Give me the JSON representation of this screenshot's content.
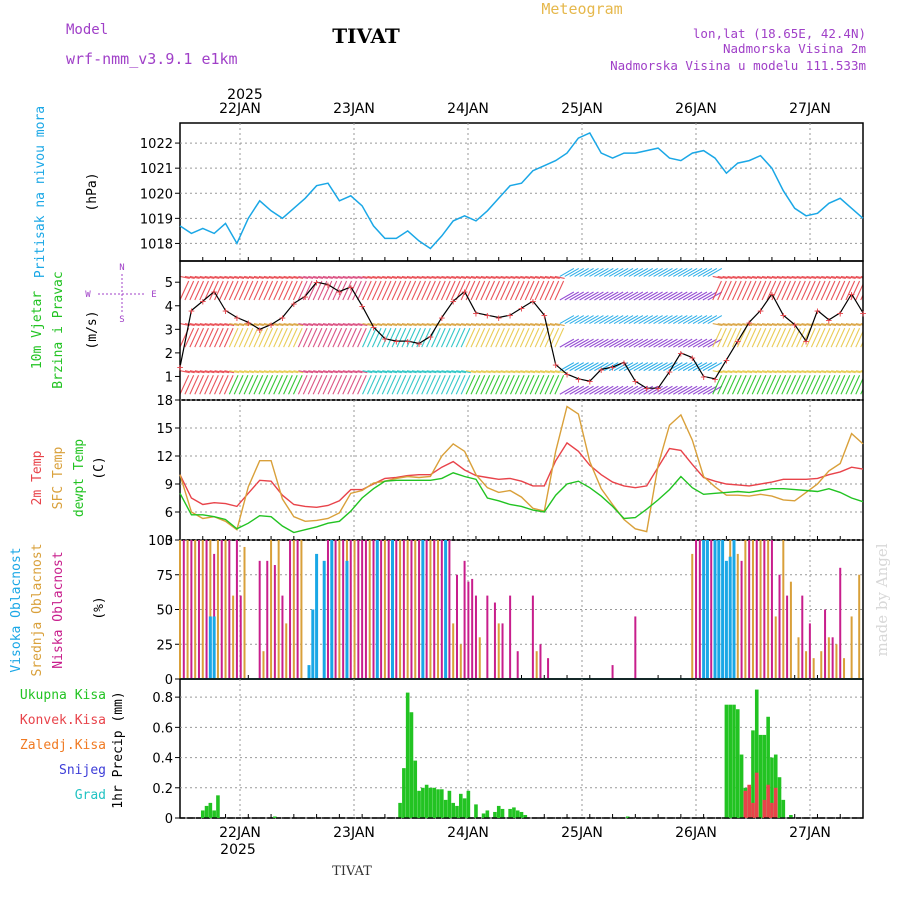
{
  "header": {
    "model_label": "Model",
    "model_name": "wrf-nmm_v3.9.1 e1km",
    "station": "TIVAT",
    "title": "Meteogram",
    "coords": "lon,lat (18.65E, 42.4N)",
    "elevation": "Nadmorska Visina 2m",
    "model_elevation": "Nadmorska Visina u modelu 111.533m",
    "footer_station": "TIVAT",
    "watermark": "made by Angel"
  },
  "colors": {
    "pressure": "#1aa7e6",
    "temp2m": "#e8434a",
    "sfc_temp": "#d9a03a",
    "dewpoint": "#22c322",
    "high_cloud": "#1aa7e6",
    "mid_cloud": "#d9a03a",
    "low_cloud": "#c81e8c",
    "total_precip": "#22c322",
    "conv_precip": "#e8434a",
    "frozen_precip": "#f07a22",
    "snow": "#3c3cd8",
    "hail": "#22c3c3",
    "title_orange": "#e6b84c",
    "purple": "#a040c8"
  },
  "time_axis": {
    "year": "2025",
    "days": [
      "22JAN",
      "23JAN",
      "24JAN",
      "25JAN",
      "26JAN",
      "27JAN"
    ],
    "hours_per_day": 24
  },
  "chart_data": [
    {
      "type": "line",
      "ylabel": "Pritisak na nivou mora",
      "unit": "(hPa)",
      "yticks": [
        1018,
        1019,
        1020,
        1021,
        1022
      ],
      "ylim": [
        1017.3,
        1022.8
      ],
      "grid": true,
      "series": [
        {
          "name": "Pritisak na nivou mora",
          "color_key": "pressure",
          "x": [
            0,
            3,
            6,
            9,
            12,
            15,
            18,
            21,
            24,
            27,
            30,
            33,
            36,
            39,
            42,
            45,
            48,
            51,
            54,
            57,
            60,
            63,
            66,
            69,
            72,
            75,
            78,
            81,
            84,
            87,
            90,
            93,
            96,
            99,
            102,
            105,
            108,
            111,
            114,
            117,
            120,
            123,
            126,
            129,
            132,
            135,
            138,
            141,
            144,
            147,
            150,
            153,
            156,
            159,
            162,
            165,
            168,
            171,
            174,
            177,
            180
          ],
          "values": [
            1018.7,
            1018.4,
            1018.6,
            1018.4,
            1018.8,
            1018.0,
            1019.0,
            1019.7,
            1019.3,
            1019.0,
            1019.4,
            1019.8,
            1020.3,
            1020.4,
            1019.7,
            1019.9,
            1019.5,
            1018.7,
            1018.2,
            1018.2,
            1018.5,
            1018.1,
            1017.8,
            1018.3,
            1018.9,
            1019.1,
            1018.9,
            1019.3,
            1019.8,
            1020.3,
            1020.4,
            1020.9,
            1021.1,
            1021.3,
            1021.6,
            1022.2,
            1022.4,
            1021.6,
            1021.4,
            1021.6,
            1021.6,
            1021.7,
            1021.8,
            1021.4,
            1021.3,
            1021.6,
            1021.7,
            1021.4,
            1020.8,
            1021.2,
            1021.3,
            1021.5,
            1021.0,
            1020.1,
            1019.4,
            1019.1,
            1019.2,
            1019.6,
            1019.8,
            1019.4,
            1019.0
          ]
        }
      ]
    },
    {
      "type": "wind",
      "ylabel": "10m Vjetar",
      "ylabel2": "Brzina i Pravac",
      "unit": "(m/s)",
      "compass": {
        "n": "N",
        "s": "S",
        "e": "E",
        "w": "W"
      },
      "yticks": [
        1,
        2,
        3,
        4,
        5
      ],
      "ylim": [
        0,
        5.9
      ],
      "band_colors": [
        "#22c322",
        "#e8c848",
        "#e8c848",
        "#d9a03a",
        "#e8434a"
      ],
      "series": [
        {
          "name": "speed",
          "x": [
            0,
            3,
            6,
            9,
            12,
            15,
            18,
            21,
            24,
            27,
            30,
            33,
            36,
            39,
            42,
            45,
            48,
            51,
            54,
            57,
            60,
            63,
            66,
            69,
            72,
            75,
            78,
            81,
            84,
            87,
            90,
            93,
            96,
            99,
            102,
            105,
            108,
            111,
            114,
            117,
            120,
            123,
            126,
            129,
            132,
            135,
            138,
            141,
            144,
            147,
            150,
            153,
            156,
            159,
            162,
            165,
            168,
            171,
            174,
            177,
            180
          ],
          "values": [
            1.4,
            3.8,
            4.2,
            4.6,
            3.8,
            3.5,
            3.3,
            3.0,
            3.2,
            3.5,
            4.1,
            4.4,
            5.0,
            4.9,
            4.6,
            4.8,
            4.0,
            3.1,
            2.6,
            2.5,
            2.5,
            2.4,
            2.7,
            3.5,
            4.2,
            4.6,
            3.7,
            3.6,
            3.5,
            3.6,
            3.9,
            4.2,
            3.6,
            1.5,
            1.1,
            0.9,
            0.8,
            1.3,
            1.4,
            1.6,
            0.8,
            0.5,
            0.5,
            1.2,
            2.0,
            1.8,
            1.0,
            0.9,
            1.7,
            2.5,
            3.3,
            3.8,
            4.5,
            3.6,
            3.2,
            2.5,
            3.8,
            3.4,
            3.7,
            4.5,
            3.7
          ]
        }
      ]
    },
    {
      "type": "line",
      "ylabel": "2m Temp",
      "ylabel2": "SFC Temp",
      "ylabel3": "dewpt Temp",
      "unit": "(C)",
      "yticks": [
        3,
        6,
        9,
        12,
        15,
        18
      ],
      "ylim": [
        3,
        18
      ],
      "grid": true,
      "x": [
        0,
        3,
        6,
        9,
        12,
        15,
        18,
        21,
        24,
        27,
        30,
        33,
        36,
        39,
        42,
        45,
        48,
        51,
        54,
        57,
        60,
        63,
        66,
        69,
        72,
        75,
        78,
        81,
        84,
        87,
        90,
        93,
        96,
        99,
        102,
        105,
        108,
        111,
        114,
        117,
        120,
        123,
        126,
        129,
        132,
        135,
        138,
        141,
        144,
        147,
        150,
        153,
        156,
        159,
        162,
        165,
        168,
        171,
        174,
        177,
        180
      ],
      "series": [
        {
          "name": "2m Temp",
          "color_key": "temp2m",
          "values": [
            10.0,
            7.5,
            6.8,
            7.0,
            6.9,
            6.6,
            8.0,
            9.4,
            9.3,
            7.8,
            6.8,
            6.6,
            6.5,
            6.7,
            7.2,
            8.4,
            8.4,
            9.0,
            9.6,
            9.7,
            9.9,
            10.0,
            10.0,
            10.8,
            11.4,
            10.5,
            9.9,
            9.7,
            9.5,
            9.6,
            9.3,
            8.8,
            8.8,
            11.5,
            13.4,
            12.5,
            11.0,
            10.0,
            9.2,
            8.8,
            8.6,
            8.8,
            10.8,
            12.8,
            12.6,
            11.1,
            9.7,
            9.3,
            9.0,
            8.9,
            8.8,
            9.0,
            9.2,
            9.5,
            9.5,
            9.5,
            9.6,
            10.0,
            10.3,
            10.8,
            10.6
          ]
        },
        {
          "name": "SFC Temp",
          "color_key": "sfc_temp",
          "values": [
            10.0,
            6.0,
            5.3,
            5.5,
            5.0,
            4.1,
            8.7,
            11.5,
            11.5,
            7.4,
            5.5,
            5.0,
            5.1,
            5.3,
            5.9,
            8.0,
            8.3,
            9.1,
            9.3,
            9.6,
            9.8,
            9.7,
            9.8,
            12.0,
            13.3,
            12.5,
            10.0,
            8.6,
            8.1,
            8.3,
            7.6,
            6.4,
            6.1,
            12.5,
            17.3,
            16.5,
            11.4,
            8.5,
            6.8,
            5.2,
            4.2,
            3.9,
            11.0,
            15.3,
            16.4,
            13.7,
            9.8,
            8.7,
            7.8,
            7.8,
            7.7,
            7.9,
            7.7,
            7.3,
            7.2,
            8.1,
            9.0,
            10.4,
            11.2,
            14.4,
            13.3
          ]
        },
        {
          "name": "dewpt Temp",
          "color_key": "dewpoint",
          "values": [
            8.0,
            5.7,
            5.7,
            5.5,
            5.2,
            4.2,
            4.8,
            5.6,
            5.5,
            4.5,
            3.8,
            4.1,
            4.4,
            4.8,
            5.0,
            6.1,
            7.5,
            8.5,
            9.3,
            9.4,
            9.4,
            9.4,
            9.4,
            9.6,
            10.2,
            9.8,
            9.5,
            7.5,
            7.2,
            6.8,
            6.6,
            6.2,
            6.0,
            7.8,
            9.0,
            9.3,
            8.6,
            7.7,
            6.6,
            5.3,
            5.4,
            6.3,
            7.3,
            8.4,
            9.8,
            8.6,
            7.9,
            8.0,
            8.1,
            8.2,
            8.1,
            8.3,
            8.5,
            8.5,
            8.4,
            8.3,
            8.2,
            8.5,
            8.1,
            7.5,
            7.1
          ]
        }
      ]
    },
    {
      "type": "bar",
      "ylabel": "Visoka Oblacnost",
      "ylabel2": "Srednja Oblacnost",
      "ylabel3": "Niska Oblacnost",
      "unit": "(%)",
      "yticks": [
        0,
        25,
        50,
        75,
        100
      ],
      "ylim": [
        0,
        100
      ],
      "grid": true,
      "series": [
        {
          "name": "Niska Oblacnost",
          "color_key": "low_cloud",
          "x": [
            1,
            3,
            5,
            7,
            9,
            11,
            13,
            15,
            16,
            21,
            23,
            25,
            27,
            29,
            31,
            39,
            41,
            43,
            45,
            47,
            48,
            49,
            51,
            53,
            55,
            57,
            59,
            61,
            63,
            65,
            67,
            69,
            71,
            73,
            75,
            76,
            77,
            78,
            81,
            83,
            85,
            87,
            89,
            93,
            95,
            97,
            114,
            120,
            136,
            137,
            138,
            139,
            140,
            146,
            148,
            150,
            152,
            154,
            156,
            158,
            160,
            164,
            166,
            170,
            172,
            174
          ],
          "values": [
            100,
            100,
            100,
            100,
            90,
            100,
            100,
            100,
            60,
            85,
            85,
            82,
            60,
            100,
            100,
            100,
            100,
            100,
            100,
            100,
            100,
            100,
            100,
            100,
            100,
            100,
            100,
            100,
            100,
            100,
            100,
            100,
            100,
            75,
            85,
            70,
            72,
            60,
            60,
            55,
            40,
            60,
            20,
            60,
            25,
            15,
            10,
            45,
            100,
            100,
            100,
            100,
            100,
            30,
            85,
            100,
            100,
            100,
            100,
            75,
            60,
            60,
            40,
            50,
            30,
            80
          ]
        },
        {
          "name": "Srednja Oblacnost",
          "color_key": "mid_cloud",
          "x": [
            0,
            2,
            4,
            6,
            8,
            10,
            12,
            14,
            17,
            22,
            24,
            26,
            28,
            30,
            32,
            40,
            42,
            44,
            46,
            50,
            52,
            54,
            56,
            58,
            60,
            62,
            64,
            66,
            68,
            70,
            72,
            74,
            79,
            84,
            94,
            135,
            141,
            143,
            145,
            147,
            149,
            151,
            153,
            155,
            157,
            159,
            161,
            163,
            165,
            167,
            169,
            171,
            173,
            175,
            177,
            179
          ],
          "values": [
            100,
            100,
            100,
            100,
            100,
            100,
            100,
            60,
            95,
            20,
            100,
            100,
            40,
            100,
            100,
            100,
            100,
            100,
            100,
            100,
            100,
            100,
            100,
            100,
            100,
            100,
            100,
            100,
            100,
            90,
            40,
            25,
            30,
            40,
            20,
            90,
            100,
            100,
            100,
            90,
            100,
            100,
            100,
            100,
            45,
            100,
            70,
            30,
            20,
            15,
            20,
            30,
            25,
            15,
            45,
            75
          ]
        },
        {
          "name": "Visoka Oblacnost",
          "color_key": "high_cloud",
          "x": [
            8,
            9,
            34,
            35,
            36,
            38,
            40,
            44,
            52,
            56,
            64,
            70,
            138,
            139,
            141,
            142,
            143,
            144,
            145,
            146
          ],
          "values": [
            45,
            45,
            10,
            50,
            90,
            85,
            100,
            85,
            100,
            100,
            100,
            100,
            100,
            100,
            100,
            100,
            100,
            85,
            88,
            100
          ]
        }
      ]
    },
    {
      "type": "bar",
      "ylabel": "1hr Precip (mm)",
      "legend": [
        "Ukupna Kisa",
        "Konvek.Kisa",
        "Zaledj.Kisa",
        "Snijeg",
        "Grad"
      ],
      "yticks": [
        0,
        0.2,
        0.4,
        0.6,
        0.8
      ],
      "ylim": [
        0,
        0.92
      ],
      "grid": true,
      "series": [
        {
          "name": "Ukupna Kisa",
          "color_key": "total_precip",
          "x": [
            6,
            7,
            8,
            9,
            10,
            25,
            58,
            59,
            60,
            61,
            62,
            63,
            64,
            65,
            66,
            67,
            68,
            69,
            70,
            71,
            72,
            73,
            74,
            75,
            76,
            78,
            80,
            81,
            83,
            84,
            85,
            87,
            88,
            89,
            90,
            91,
            118,
            144,
            145,
            146,
            147,
            148,
            149,
            150,
            151,
            152,
            153,
            154,
            155,
            156,
            157,
            158,
            159,
            161
          ],
          "values": [
            0.05,
            0.08,
            0.1,
            0.05,
            0.15,
            0.01,
            0.1,
            0.33,
            0.83,
            0.7,
            0.38,
            0.18,
            0.2,
            0.22,
            0.2,
            0.2,
            0.19,
            0.19,
            0.12,
            0.18,
            0.1,
            0.08,
            0.16,
            0.13,
            0.18,
            0.09,
            0.03,
            0.05,
            0.04,
            0.08,
            0.06,
            0.06,
            0.07,
            0.05,
            0.04,
            0.02,
            0.01,
            0.75,
            0.75,
            0.75,
            0.72,
            0.42,
            0.2,
            0.2,
            0.58,
            0.85,
            0.55,
            0.55,
            0.67,
            0.4,
            0.42,
            0.27,
            0.12,
            0.02
          ]
        },
        {
          "name": "Konvek.Kisa",
          "color_key": "conv_precip",
          "x": [
            149,
            150,
            151,
            152,
            154,
            155,
            156,
            157
          ],
          "values": [
            0.18,
            0.22,
            0.1,
            0.3,
            0.12,
            0.22,
            0.1,
            0.2
          ]
        }
      ]
    }
  ]
}
